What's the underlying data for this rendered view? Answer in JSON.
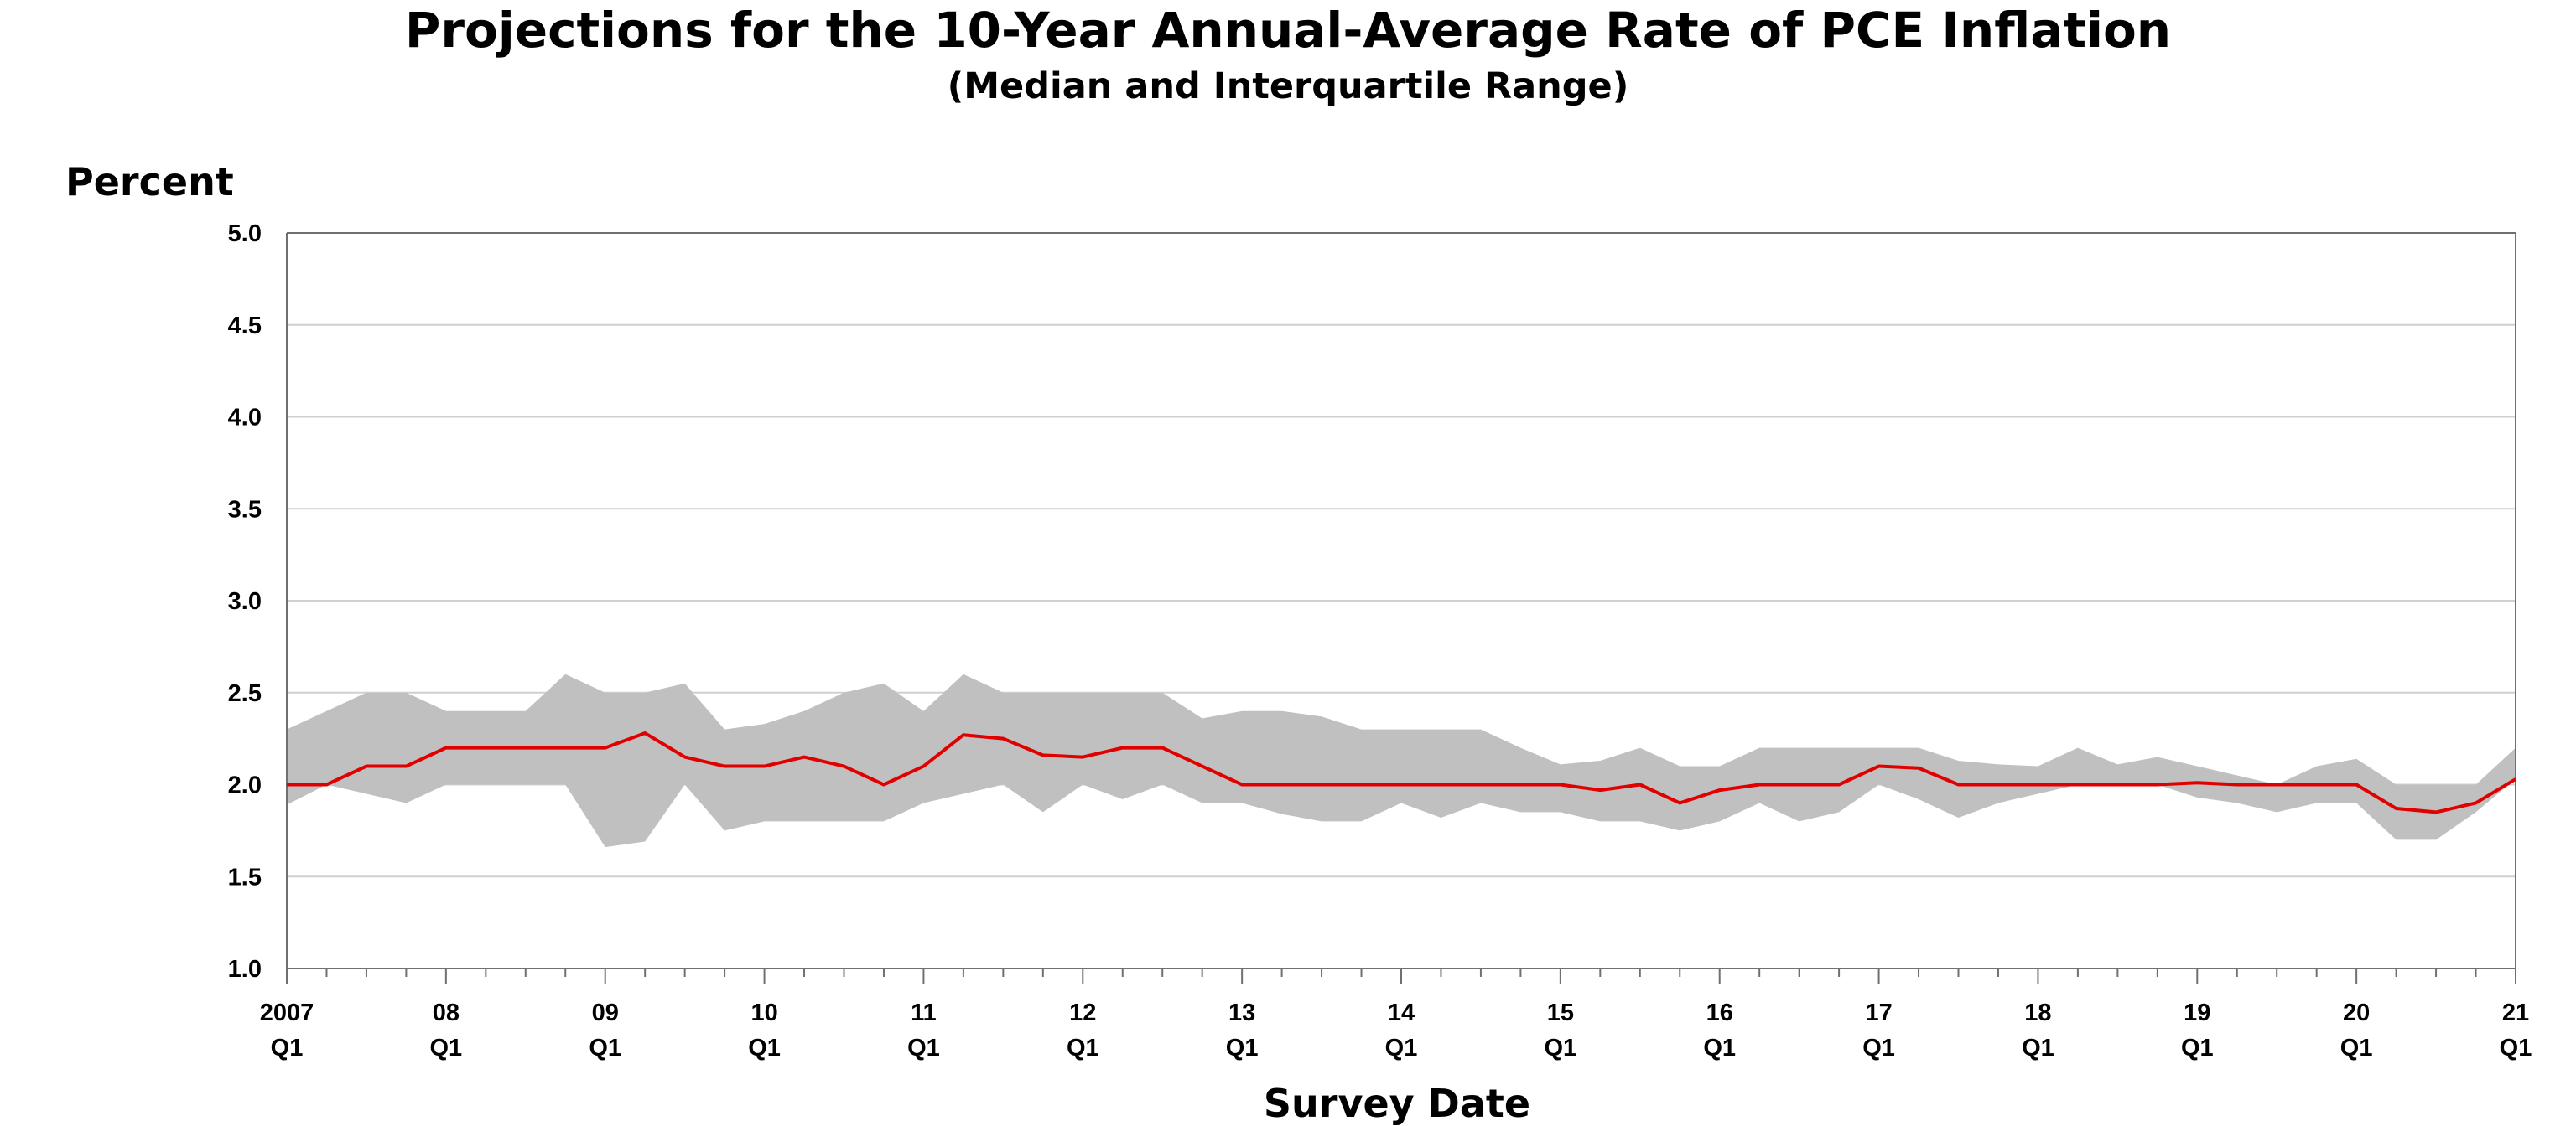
{
  "chart_data": {
    "type": "area",
    "title": "Projections for the 10-Year Annual-Average Rate of PCE Inflation",
    "subtitle": "(Median and Interquartile Range)",
    "ylabel": "Percent",
    "xlabel": "Survey Date",
    "ylim": [
      1.0,
      5.0
    ],
    "yticks": [
      "1.0",
      "1.5",
      "2.0",
      "2.5",
      "3.0",
      "3.5",
      "4.0",
      "4.5",
      "5.0"
    ],
    "grid": true,
    "xtick_labels": [
      [
        "2007",
        "Q1"
      ],
      [
        "08",
        "Q1"
      ],
      [
        "09",
        "Q1"
      ],
      [
        "10",
        "Q1"
      ],
      [
        "11",
        "Q1"
      ],
      [
        "12",
        "Q1"
      ],
      [
        "13",
        "Q1"
      ],
      [
        "14",
        "Q1"
      ],
      [
        "15",
        "Q1"
      ],
      [
        "16",
        "Q1"
      ],
      [
        "17",
        "Q1"
      ],
      [
        "18",
        "Q1"
      ],
      [
        "19",
        "Q1"
      ],
      [
        "20",
        "Q1"
      ],
      [
        "21",
        "Q1"
      ]
    ],
    "x": [
      "2007Q1",
      "2007Q2",
      "2007Q3",
      "2007Q4",
      "2008Q1",
      "2008Q2",
      "2008Q3",
      "2008Q4",
      "2009Q1",
      "2009Q2",
      "2009Q3",
      "2009Q4",
      "2010Q1",
      "2010Q2",
      "2010Q3",
      "2010Q4",
      "2011Q1",
      "2011Q2",
      "2011Q3",
      "2011Q4",
      "2012Q1",
      "2012Q2",
      "2012Q3",
      "2012Q4",
      "2013Q1",
      "2013Q2",
      "2013Q3",
      "2013Q4",
      "2014Q1",
      "2014Q2",
      "2014Q3",
      "2014Q4",
      "2015Q1",
      "2015Q2",
      "2015Q3",
      "2015Q4",
      "2016Q1",
      "2016Q2",
      "2016Q3",
      "2016Q4",
      "2017Q1",
      "2017Q2",
      "2017Q3",
      "2017Q4",
      "2018Q1",
      "2018Q2",
      "2018Q3",
      "2018Q4",
      "2019Q1",
      "2019Q2",
      "2019Q3",
      "2019Q4",
      "2020Q1",
      "2020Q2",
      "2020Q3",
      "2020Q4",
      "2021Q1"
    ],
    "series": [
      {
        "name": "",
        "role": "upper",
        "color": "#c0c0c0",
        "values": [
          2.3,
          2.4,
          2.5,
          2.5,
          2.4,
          2.4,
          2.4,
          2.6,
          2.5,
          2.5,
          2.55,
          2.3,
          2.33,
          2.4,
          2.5,
          2.55,
          2.4,
          2.6,
          2.5,
          2.5,
          2.5,
          2.5,
          2.5,
          2.36,
          2.4,
          2.4,
          2.37,
          2.3,
          2.3,
          2.3,
          2.3,
          2.2,
          2.11,
          2.13,
          2.2,
          2.1,
          2.1,
          2.2,
          2.2,
          2.2,
          2.2,
          2.2,
          2.13,
          2.11,
          2.1,
          2.2,
          2.11,
          2.15,
          2.1,
          2.05,
          2.0,
          2.1,
          2.14,
          2.0,
          2.0,
          2.0,
          2.2
        ]
      },
      {
        "name": "",
        "role": "lower",
        "color": "#c0c0c0",
        "values": [
          1.89,
          2.0,
          1.95,
          1.9,
          2.0,
          2.0,
          2.0,
          2.0,
          1.66,
          1.69,
          2.0,
          1.75,
          1.8,
          1.8,
          1.8,
          1.8,
          1.9,
          1.95,
          2.0,
          1.85,
          2.0,
          1.92,
          2.0,
          1.9,
          1.9,
          1.84,
          1.8,
          1.8,
          1.9,
          1.82,
          1.9,
          1.85,
          1.85,
          1.8,
          1.8,
          1.75,
          1.8,
          1.9,
          1.8,
          1.85,
          2.0,
          1.92,
          1.82,
          1.9,
          1.95,
          2.0,
          2.0,
          2.0,
          1.93,
          1.9,
          1.85,
          1.9,
          1.9,
          1.7,
          1.7,
          1.85,
          2.03
        ]
      },
      {
        "name": "",
        "role": "median",
        "color": "#e00000",
        "values": [
          2.0,
          2.0,
          2.1,
          2.1,
          2.2,
          2.2,
          2.2,
          2.2,
          2.2,
          2.28,
          2.15,
          2.1,
          2.1,
          2.15,
          2.1,
          2.0,
          2.1,
          2.27,
          2.25,
          2.16,
          2.15,
          2.2,
          2.2,
          2.1,
          2.0,
          2.0,
          2.0,
          2.0,
          2.0,
          2.0,
          2.0,
          2.0,
          2.0,
          1.97,
          2.0,
          1.9,
          1.97,
          2.0,
          2.0,
          2.0,
          2.1,
          2.09,
          2.0,
          2.0,
          2.0,
          2.0,
          2.0,
          2.0,
          2.01,
          2.0,
          2.0,
          2.0,
          2.0,
          1.87,
          1.85,
          1.9,
          2.03
        ]
      }
    ]
  }
}
